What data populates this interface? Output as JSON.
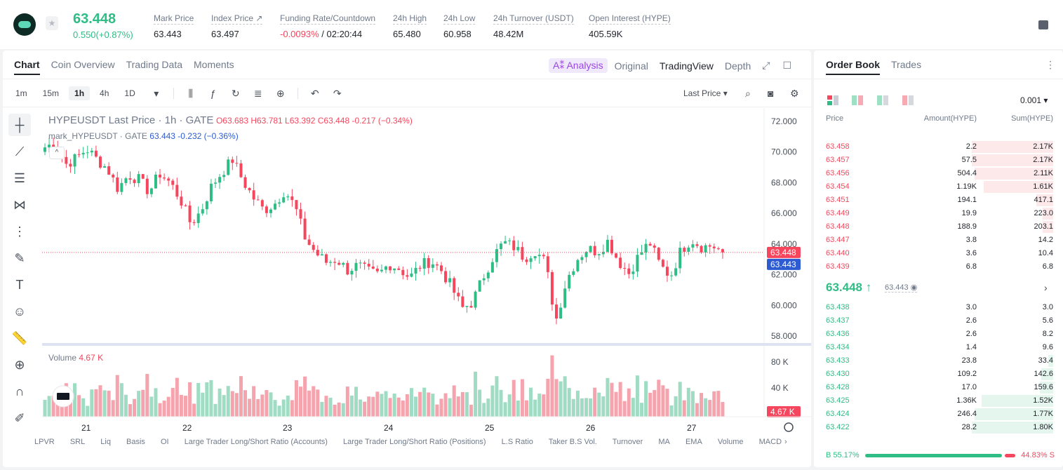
{
  "header": {
    "price": "63.448",
    "change": "0.550(+0.87%)",
    "stats": [
      {
        "label": "Mark Price",
        "value": "63.443"
      },
      {
        "label": "Index Price ↗",
        "value": "63.497"
      },
      {
        "label": "Funding Rate/Countdown",
        "value_red": "-0.0093%",
        "value": " / 02:20:44"
      },
      {
        "label": "24h High",
        "value": "65.480"
      },
      {
        "label": "24h Low",
        "value": "60.958"
      },
      {
        "label": "24h Turnover (USDT)",
        "value": "48.42M"
      },
      {
        "label": "Open Interest (HYPE)",
        "value": "405.59K"
      }
    ]
  },
  "chart_tabs": [
    "Chart",
    "Coin Overview",
    "Trading Data",
    "Moments"
  ],
  "view_tabs": {
    "ai": "A⁑ Analysis",
    "original": "Original",
    "tradingview": "TradingView",
    "depth": "Depth"
  },
  "timeframes": [
    "1m",
    "15m",
    "1h",
    "4h",
    "1D"
  ],
  "last_price_select": "Last Price",
  "legend": {
    "title": "HYPEUSDT Last Price · 1h · GATE",
    "ohlc": "O63.683 H63.781 L63.392 C63.448 -0.217 (−0.34%)",
    "mark_label": "mark_HYPEUSDT · GATE",
    "mark_values": "63.443 -0.232 (−0.36%)"
  },
  "volume_label": "Volume",
  "volume_value": "4.67 K",
  "bottom_indicators": [
    "LPVR",
    "SRL",
    "Liq",
    "Basis",
    "OI",
    "Large Trader Long/Short Ratio (Accounts)",
    "Large Trader Long/Short Ratio (Positions)",
    "L.S Ratio",
    "Taker B.S Vol.",
    "Turnover",
    "MA",
    "EMA",
    "Volume",
    "MACD"
  ],
  "chart_data": {
    "type": "candlestick",
    "price_axis": [
      "72.000",
      "70.000",
      "68.000",
      "66.000",
      "64.000",
      "62.000",
      "60.000",
      "58.000"
    ],
    "ylim": [
      57.5,
      72.4
    ],
    "volume_axis": [
      "80 K",
      "40 K"
    ],
    "x_ticks": [
      "21",
      "22",
      "23",
      "24",
      "25",
      "26",
      "27"
    ],
    "last_price_tag": "63.448",
    "mark_price_tag": "63.443",
    "volume_tag": "4.67 K",
    "close_path": [
      70.3,
      70.6,
      69.2,
      69.6,
      70.2,
      69.5,
      68.9,
      67.6,
      68.5,
      68.2,
      67.4,
      68.6,
      68.0,
      66.9,
      65.3,
      66.2,
      67.8,
      68.7,
      69.5,
      68.1,
      67.0,
      66.2,
      66.6,
      67.5,
      66.4,
      64.3,
      63.4,
      62.8,
      63.0,
      62.3,
      62.6,
      62.2,
      62.0,
      62.7,
      62.4,
      61.8,
      62.6,
      62.9,
      62.3,
      61.2,
      59.8,
      60.2,
      61.8,
      63.2,
      64.1,
      63.8,
      63.1,
      63.6,
      62.8,
      59.0,
      61.6,
      63.0,
      63.7,
      63.5,
      64.2,
      62.9,
      62.1,
      63.3,
      64.1,
      62.6,
      61.9,
      63.6,
      64.3,
      63.8,
      63.9,
      63.448
    ]
  },
  "order_book": {
    "tabs": [
      "Order Book",
      "Trades"
    ],
    "precision": "0.001 ▾",
    "headers": [
      "Price",
      "Amount(HYPE)",
      "Sum(HYPE)"
    ],
    "asks": [
      [
        "63.458",
        "2.2",
        "2.17K",
        0.34
      ],
      [
        "63.457",
        "57.5",
        "2.17K",
        0.34
      ],
      [
        "63.456",
        "504.4",
        "2.11K",
        0.33
      ],
      [
        "63.454",
        "1.19K",
        "1.61K",
        0.29
      ],
      [
        "63.451",
        "194.1",
        "417.1",
        0.07
      ],
      [
        "63.449",
        "19.9",
        "223.0",
        0.045
      ],
      [
        "63.448",
        "188.9",
        "203.1",
        0.045
      ],
      [
        "63.447",
        "3.8",
        "14.2",
        0.0
      ],
      [
        "63.440",
        "3.6",
        "10.4",
        0.0
      ],
      [
        "63.439",
        "6.8",
        "6.8",
        0.0
      ]
    ],
    "mid_price": "63.448 ↑",
    "mid_mark": "63.443",
    "bids": [
      [
        "63.438",
        "3.0",
        "3.0",
        0.0
      ],
      [
        "63.437",
        "2.6",
        "5.6",
        0.0
      ],
      [
        "63.436",
        "2.6",
        "8.2",
        0.0
      ],
      [
        "63.434",
        "1.4",
        "9.6",
        0.0
      ],
      [
        "63.433",
        "23.8",
        "33.4",
        0.02
      ],
      [
        "63.430",
        "109.2",
        "142.6",
        0.05
      ],
      [
        "63.428",
        "17.0",
        "159.6",
        0.055
      ],
      [
        "63.425",
        "1.36K",
        "1.52K",
        0.3
      ],
      [
        "63.424",
        "246.4",
        "1.77K",
        0.33
      ],
      [
        "63.422",
        "28.2",
        "1.80K",
        0.34
      ]
    ],
    "buy_ratio": "B 55.17%",
    "sell_ratio": "44.83% S"
  }
}
